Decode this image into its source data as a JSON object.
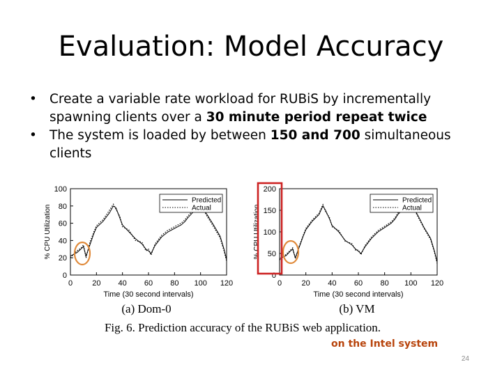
{
  "slide": {
    "title": "Evaluation: Model Accuracy",
    "bullets": [
      {
        "before": "Create a variable rate workload for RUBiS by incrementally spawning clients over a ",
        "bold": "30 minute period repeat twice",
        "after": ""
      },
      {
        "before": "The system is loaded by between ",
        "bold": "150 and 700",
        "after": " simultaneous clients"
      }
    ],
    "footnote": "on the Intel system",
    "page_number": "24"
  },
  "figure": {
    "caption": "Fig. 6. Prediction accuracy of the RUBiS web application.",
    "highlight_color": "#cc2222",
    "circle_color": "#e08a3a"
  },
  "chart_data": [
    {
      "type": "line",
      "subtitle": "(a) Dom-0",
      "xlabel": "Time (30 second intervals)",
      "ylabel": "% CPU Utilization",
      "xlim": [
        0,
        120
      ],
      "ylim": [
        0,
        100
      ],
      "xticks": [
        0,
        20,
        40,
        60,
        80,
        100,
        120
      ],
      "yticks": [
        0,
        20,
        40,
        60,
        80,
        100
      ],
      "legend_position": "top-right",
      "series": [
        {
          "name": "Predicted",
          "style": "solid",
          "x": [
            0,
            5,
            8,
            10,
            12,
            15,
            18,
            20,
            25,
            30,
            33,
            35,
            38,
            40,
            45,
            50,
            55,
            58,
            60,
            62,
            65,
            70,
            75,
            80,
            85,
            88,
            90,
            95,
            100,
            105,
            110,
            115,
            118,
            120
          ],
          "y": [
            22,
            26,
            30,
            33,
            22,
            35,
            48,
            55,
            62,
            72,
            80,
            78,
            66,
            58,
            50,
            42,
            36,
            30,
            28,
            25,
            34,
            44,
            50,
            54,
            58,
            62,
            66,
            74,
            80,
            70,
            58,
            45,
            30,
            18
          ]
        },
        {
          "name": "Actual",
          "style": "dotted",
          "x": [
            0,
            5,
            8,
            10,
            12,
            15,
            18,
            20,
            25,
            30,
            33,
            35,
            38,
            40,
            45,
            50,
            55,
            58,
            60,
            62,
            65,
            70,
            75,
            80,
            85,
            88,
            90,
            95,
            100,
            105,
            110,
            115,
            118,
            120
          ],
          "y": [
            20,
            28,
            31,
            35,
            20,
            38,
            50,
            57,
            64,
            75,
            82,
            76,
            68,
            56,
            52,
            40,
            38,
            28,
            30,
            23,
            36,
            46,
            52,
            56,
            60,
            64,
            68,
            76,
            82,
            68,
            56,
            43,
            28,
            16
          ]
        }
      ]
    },
    {
      "type": "line",
      "subtitle": "(b) VM",
      "xlabel": "Time (30 second intervals)",
      "ylabel": "% CPU Utilization",
      "xlim": [
        0,
        120
      ],
      "ylim": [
        0,
        200
      ],
      "xticks": [
        0,
        20,
        40,
        60,
        80,
        100,
        120
      ],
      "yticks": [
        0,
        50,
        100,
        150,
        200
      ],
      "legend_position": "top-right",
      "series": [
        {
          "name": "Predicted",
          "style": "solid",
          "x": [
            0,
            5,
            8,
            10,
            12,
            15,
            18,
            20,
            25,
            30,
            33,
            35,
            38,
            40,
            45,
            50,
            55,
            58,
            60,
            62,
            65,
            70,
            75,
            80,
            85,
            88,
            90,
            95,
            100,
            105,
            110,
            115,
            118,
            120
          ],
          "y": [
            38,
            45,
            55,
            60,
            40,
            65,
            90,
            105,
            125,
            140,
            160,
            150,
            130,
            115,
            100,
            80,
            70,
            60,
            55,
            50,
            65,
            85,
            100,
            110,
            120,
            130,
            140,
            155,
            165,
            140,
            110,
            85,
            55,
            30
          ]
        },
        {
          "name": "Actual",
          "style": "dotted",
          "x": [
            0,
            5,
            8,
            10,
            12,
            15,
            18,
            20,
            25,
            30,
            33,
            35,
            38,
            40,
            45,
            50,
            55,
            58,
            60,
            62,
            65,
            70,
            75,
            80,
            85,
            88,
            90,
            95,
            100,
            105,
            110,
            115,
            118,
            120
          ],
          "y": [
            35,
            48,
            57,
            63,
            38,
            68,
            92,
            108,
            128,
            143,
            163,
            147,
            133,
            112,
            103,
            78,
            73,
            57,
            58,
            47,
            68,
            88,
            103,
            113,
            123,
            133,
            143,
            158,
            168,
            137,
            108,
            82,
            52,
            27
          ]
        }
      ]
    }
  ]
}
